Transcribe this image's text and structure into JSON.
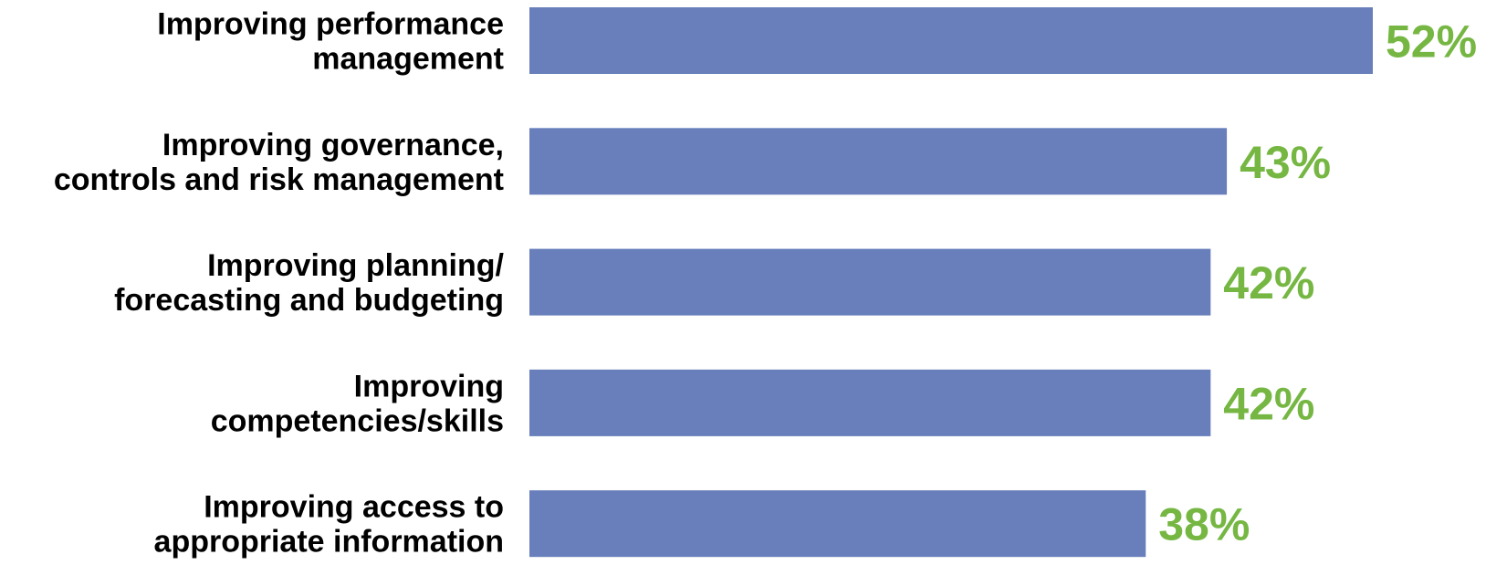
{
  "chart_data": {
    "type": "bar",
    "orientation": "horizontal",
    "categories": [
      [
        "Improving performance",
        "management"
      ],
      [
        "Improving governance,",
        "controls and risk management"
      ],
      [
        "Improving planning/",
        "forecasting and budgeting"
      ],
      [
        "Improving",
        "competencies/skills"
      ],
      [
        "Improving access to",
        "appropriate information"
      ]
    ],
    "values": [
      52,
      43,
      42,
      42,
      38
    ],
    "value_labels": [
      "52%",
      "43%",
      "42%",
      "42%",
      "38%"
    ],
    "xlim": [
      0,
      52
    ],
    "grid": false,
    "legend": "none",
    "colors": {
      "bar": "#687fbb",
      "value_label": "#76b743"
    }
  }
}
